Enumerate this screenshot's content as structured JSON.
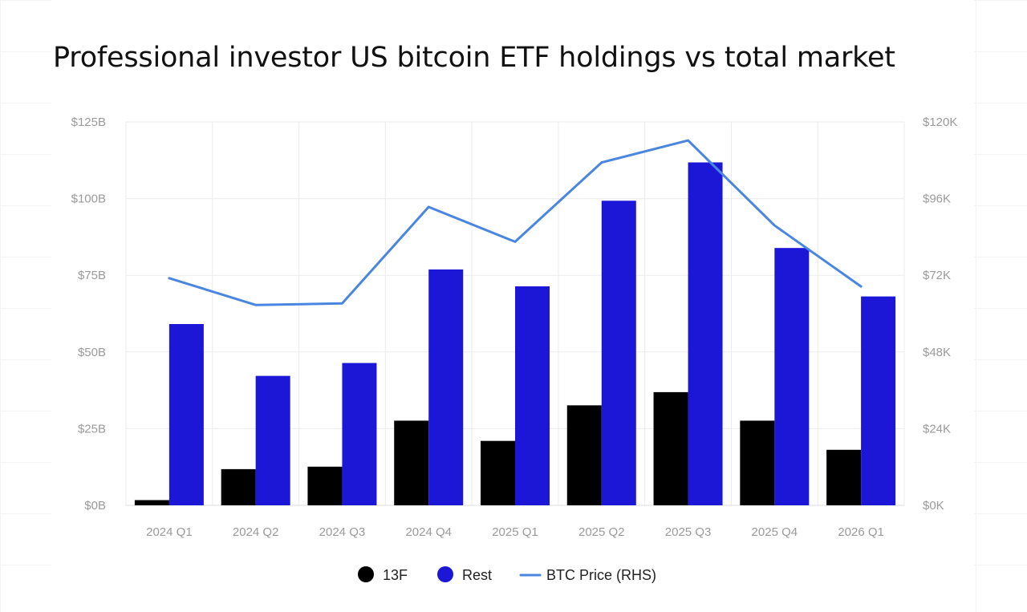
{
  "chart_data": {
    "type": "bar",
    "title": "Professional investor US bitcoin ETF holdings vs total market",
    "categories": [
      "2024 Q1",
      "2024 Q2",
      "2024 Q3",
      "2024 Q4",
      "2025 Q1",
      "2025 Q2",
      "2025 Q3",
      "2025 Q4",
      "2026 Q1"
    ],
    "series": [
      {
        "name": "13F",
        "kind": "bar",
        "axis": "left",
        "color": "#000000",
        "values": [
          1.7,
          11.8,
          12.6,
          27.6,
          21.0,
          32.6,
          36.9,
          27.6,
          18.1
        ]
      },
      {
        "name": "Rest",
        "kind": "bar",
        "axis": "left",
        "color": "#1c17d6",
        "values": [
          59.1,
          42.2,
          46.4,
          76.9,
          71.4,
          99.3,
          111.8,
          83.9,
          68.1
        ]
      },
      {
        "name": "BTC Price (RHS)",
        "kind": "line",
        "axis": "right",
        "color": "#4a86e0",
        "values": [
          71100,
          62700,
          63200,
          93400,
          82500,
          107300,
          114200,
          87600,
          68500
        ]
      }
    ],
    "y_left": {
      "min": 0,
      "max": 125,
      "ticks": [
        "$0B",
        "$25B",
        "$50B",
        "$75B",
        "$100B",
        "$125B"
      ]
    },
    "y_right": {
      "min": 0,
      "max": 120000,
      "ticks": [
        "$0K",
        "$24K",
        "$48K",
        "$72K",
        "$96K",
        "$120K"
      ]
    },
    "grid": true,
    "legend_position": "bottom-center"
  }
}
